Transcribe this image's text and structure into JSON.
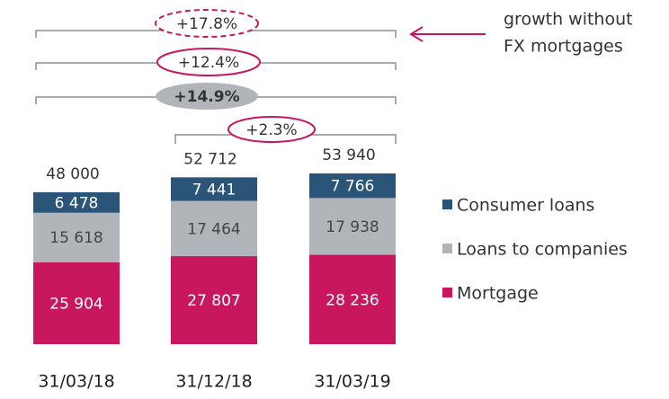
{
  "chart_data": {
    "type": "stacked_bar",
    "categories": [
      "31/03/18",
      "31/12/18",
      "31/03/19"
    ],
    "series": [
      {
        "name": "Mortgage",
        "color": "#c8175d",
        "values": [
          25904,
          27807,
          28236
        ],
        "value_labels": [
          "25 904",
          "27 807",
          "28 236"
        ]
      },
      {
        "name": "Loans to companies",
        "color": "#b1b5ba",
        "values": [
          15618,
          17464,
          17938
        ],
        "value_labels": [
          "15 618",
          "17 464",
          "17 938"
        ]
      },
      {
        "name": "Consumer loans",
        "color": "#2b5479",
        "values": [
          6478,
          7441,
          7766
        ],
        "value_labels": [
          "6 478",
          "7 441",
          "7 766"
        ]
      }
    ],
    "totals": [
      48000,
      52712,
      53940
    ],
    "total_labels": [
      "48 000",
      "52 712",
      "53 940"
    ],
    "annotations": [
      "+17.8%",
      "+12.4%",
      "+14.9%",
      "+2.3%"
    ],
    "note": [
      "growth without",
      "FX mortgages"
    ]
  }
}
